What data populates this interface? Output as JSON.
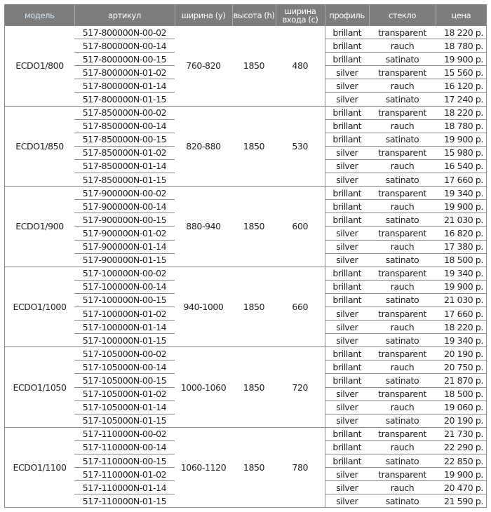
{
  "header": [
    "модель",
    "артикул",
    "ширина (y)",
    "высота (h)",
    "ширина входа (c)",
    "профиль",
    "стекло",
    "цена"
  ],
  "groups": [
    {
      "model": "ECDO1/800",
      "width": "760-820",
      "height": "1850",
      "entry": "480",
      "rows": [
        [
          "517-800000N-00-02",
          "brillant",
          "transparent",
          "18 220 р."
        ],
        [
          "517-800000N-00-14",
          "brillant",
          "rauch",
          "18 780 р."
        ],
        [
          "517-800000N-00-15",
          "brillant",
          "satinato",
          "19 900 р."
        ],
        [
          "517-800000N-01-02",
          "silver",
          "transparent",
          "15 560 р."
        ],
        [
          "517-800000N-01-14",
          "silver",
          "rauch",
          "16 120 р."
        ],
        [
          "517-800000N-01-15",
          "silver",
          "satinato",
          "17 240 р."
        ]
      ]
    },
    {
      "model": "ECDO1/850",
      "width": "820-880",
      "height": "1850",
      "entry": "530",
      "rows": [
        [
          "517-850000N-00-02",
          "brillant",
          "transparent",
          "18 220 р."
        ],
        [
          "517-850000N-00-14",
          "brillant",
          "rauch",
          "18 780 р."
        ],
        [
          "517-850000N-00-15",
          "brillant",
          "satinato",
          "19 900 р."
        ],
        [
          "517-850000N-01-02",
          "silver",
          "transparent",
          "15 980 р."
        ],
        [
          "517-850000N-01-14",
          "silver",
          "rauch",
          "16 540 р."
        ],
        [
          "517-850000N-01-15",
          "silver",
          "satinato",
          "17 660 р."
        ]
      ]
    },
    {
      "model": "ECDO1/900",
      "width": "880-940",
      "height": "1850",
      "entry": "600",
      "rows": [
        [
          "517-900000N-00-02",
          "brillant",
          "transparent",
          "19 340 р."
        ],
        [
          "517-900000N-00-14",
          "brillant",
          "rauch",
          "19 900 р."
        ],
        [
          "517-900000N-00-15",
          "brillant",
          "satinato",
          "21 030 р."
        ],
        [
          "517-900000N-01-02",
          "silver",
          "transparent",
          "16 820 р."
        ],
        [
          "517-900000N-01-14",
          "silver",
          "rauch",
          "17 380 р."
        ],
        [
          "517-900000N-01-15",
          "silver",
          "satinato",
          "18 500 р."
        ]
      ]
    },
    {
      "model": "ECDO1/1000",
      "width": "940-1000",
      "height": "1850",
      "entry": "660",
      "rows": [
        [
          "517-100000N-00-02",
          "brillant",
          "transparent",
          "19 340 р."
        ],
        [
          "517-100000N-00-14",
          "brillant",
          "rauch",
          "19 900 р."
        ],
        [
          "517-100000N-00-15",
          "brillant",
          "satinato",
          "21 030 р."
        ],
        [
          "517-100000N-01-02",
          "silver",
          "transparent",
          "17 660 р."
        ],
        [
          "517-100000N-01-14",
          "silver",
          "rauch",
          "18 220 р."
        ],
        [
          "517-100000N-01-15",
          "silver",
          "satinato",
          "19 340 р."
        ]
      ]
    },
    {
      "model": "ECDO1/1050",
      "width": "1000-1060",
      "height": "1850",
      "entry": "720",
      "rows": [
        [
          "517-105000N-00-02",
          "brillant",
          "transparent",
          "20 190 р."
        ],
        [
          "517-105000N-00-14",
          "brillant",
          "rauch",
          "20 750 р."
        ],
        [
          "517-105000N-00-15",
          "brillant",
          "satinato",
          "21 870 р."
        ],
        [
          "517-105000N-01-02",
          "silver",
          "transparent",
          "18 500 р."
        ],
        [
          "517-105000N-01-14",
          "silver",
          "rauch",
          "19 060 р."
        ],
        [
          "517-105000N-01-15",
          "silver",
          "satinato",
          "20 190 р."
        ]
      ]
    },
    {
      "model": "ECDO1/1100",
      "width": "1060-1120",
      "height": "1850",
      "entry": "780",
      "rows": [
        [
          "517-110000N-00-02",
          "brillant",
          "transparent",
          "21 730 р."
        ],
        [
          "517-110000N-00-14",
          "brillant",
          "rauch",
          "22 290 р."
        ],
        [
          "517-110000N-00-15",
          "brillant",
          "satinato",
          "22 850 р."
        ],
        [
          "517-110000N-01-02",
          "silver",
          "transparent",
          "19 900 р."
        ],
        [
          "517-110000N-01-14",
          "silver",
          "rauch",
          "20 470 р."
        ],
        [
          "517-110000N-01-15",
          "silver",
          "satinato",
          "21 590 р."
        ]
      ]
    }
  ]
}
